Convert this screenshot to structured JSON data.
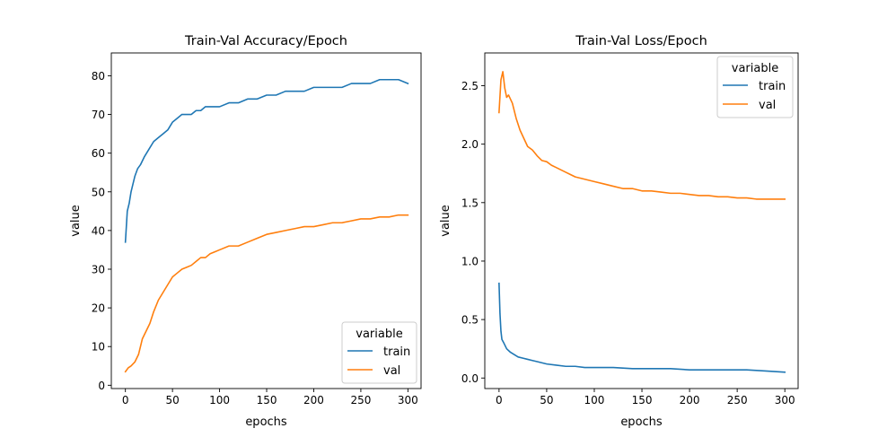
{
  "figure": {
    "colors": {
      "train": "#1f77b4",
      "val": "#ff7f0e",
      "axes": "#000000",
      "legend_border": "#cccccc"
    }
  },
  "chart_data": [
    {
      "type": "line",
      "title": "Train-Val Accuracy/Epoch",
      "xlabel": "epochs",
      "ylabel": "value",
      "xlim": [
        -14.95,
        313.95
      ],
      "ylim": [
        -0.85,
        85.9
      ],
      "xticks": [
        0,
        50,
        100,
        150,
        200,
        250,
        300
      ],
      "yticks": [
        0,
        10,
        20,
        30,
        40,
        50,
        60,
        70,
        80
      ],
      "grid": false,
      "legend": {
        "title": "variable",
        "placement": "lower-right",
        "entries": [
          "train",
          "val"
        ]
      },
      "series": [
        {
          "name": "train",
          "color": "#1f77b4",
          "x": [
            0,
            2,
            4,
            6,
            8,
            10,
            13,
            16,
            20,
            25,
            30,
            35,
            40,
            45,
            50,
            55,
            60,
            65,
            70,
            75,
            80,
            85,
            90,
            95,
            100,
            110,
            120,
            130,
            140,
            150,
            160,
            170,
            180,
            190,
            200,
            210,
            220,
            230,
            240,
            250,
            260,
            270,
            280,
            290,
            300
          ],
          "y": [
            37,
            45,
            47,
            50,
            52,
            54,
            56,
            57,
            59,
            61,
            63,
            64,
            65,
            66,
            68,
            69,
            70,
            70,
            70,
            71,
            71,
            72,
            72,
            72,
            72,
            73,
            73,
            74,
            74,
            75,
            75,
            76,
            76,
            76,
            77,
            77,
            77,
            77,
            78,
            78,
            78,
            79,
            79,
            79,
            78
          ]
        },
        {
          "name": "val",
          "color": "#ff7f0e",
          "x": [
            0,
            3,
            6,
            10,
            14,
            18,
            22,
            26,
            30,
            35,
            40,
            45,
            50,
            55,
            60,
            65,
            70,
            75,
            80,
            85,
            90,
            95,
            100,
            110,
            120,
            130,
            140,
            150,
            160,
            170,
            180,
            190,
            200,
            210,
            220,
            230,
            240,
            250,
            260,
            270,
            280,
            290,
            300
          ],
          "y": [
            3.5,
            4.5,
            5,
            6,
            8,
            12,
            14,
            16,
            19,
            22,
            24,
            26,
            28,
            29,
            30,
            30.5,
            31,
            32,
            33,
            33,
            34,
            34.5,
            35,
            36,
            36,
            37,
            38,
            39,
            39.5,
            40,
            40.5,
            41,
            41,
            41.5,
            42,
            42,
            42.5,
            43,
            43,
            43.5,
            43.5,
            44,
            44
          ]
        }
      ]
    },
    {
      "type": "line",
      "title": "Train-Val Loss/Epoch",
      "xlabel": "epochs",
      "ylabel": "value",
      "xlim": [
        -14.95,
        313.95
      ],
      "ylim": [
        -0.09,
        2.78
      ],
      "xticks": [
        0,
        50,
        100,
        150,
        200,
        250,
        300
      ],
      "yticks": [
        0.0,
        0.5,
        1.0,
        1.5,
        2.0,
        2.5
      ],
      "ytick_labels": [
        "0.0",
        "0.5",
        "1.0",
        "1.5",
        "2.0",
        "2.5"
      ],
      "grid": false,
      "legend": {
        "title": "variable",
        "placement": "upper-right",
        "entries": [
          "train",
          "val"
        ]
      },
      "series": [
        {
          "name": "train",
          "color": "#1f77b4",
          "x": [
            0,
            1,
            2,
            3,
            5,
            8,
            12,
            16,
            20,
            25,
            30,
            35,
            40,
            50,
            60,
            70,
            80,
            90,
            100,
            120,
            140,
            160,
            180,
            200,
            220,
            240,
            260,
            280,
            300
          ],
          "y": [
            0.81,
            0.55,
            0.4,
            0.33,
            0.3,
            0.25,
            0.22,
            0.2,
            0.18,
            0.17,
            0.16,
            0.15,
            0.14,
            0.12,
            0.11,
            0.1,
            0.1,
            0.09,
            0.09,
            0.09,
            0.08,
            0.08,
            0.08,
            0.07,
            0.07,
            0.07,
            0.07,
            0.06,
            0.05
          ]
        },
        {
          "name": "val",
          "color": "#ff7f0e",
          "x": [
            0,
            2,
            4,
            6,
            8,
            10,
            14,
            18,
            22,
            26,
            30,
            35,
            40,
            45,
            50,
            55,
            60,
            70,
            80,
            90,
            100,
            110,
            120,
            130,
            140,
            150,
            160,
            170,
            180,
            190,
            200,
            210,
            220,
            230,
            240,
            250,
            260,
            270,
            280,
            290,
            300
          ],
          "y": [
            2.27,
            2.55,
            2.62,
            2.48,
            2.4,
            2.42,
            2.35,
            2.22,
            2.12,
            2.05,
            1.98,
            1.95,
            1.9,
            1.86,
            1.85,
            1.82,
            1.8,
            1.76,
            1.72,
            1.7,
            1.68,
            1.66,
            1.64,
            1.62,
            1.62,
            1.6,
            1.6,
            1.59,
            1.58,
            1.58,
            1.57,
            1.56,
            1.56,
            1.55,
            1.55,
            1.54,
            1.54,
            1.53,
            1.53,
            1.53,
            1.53
          ]
        }
      ]
    }
  ]
}
